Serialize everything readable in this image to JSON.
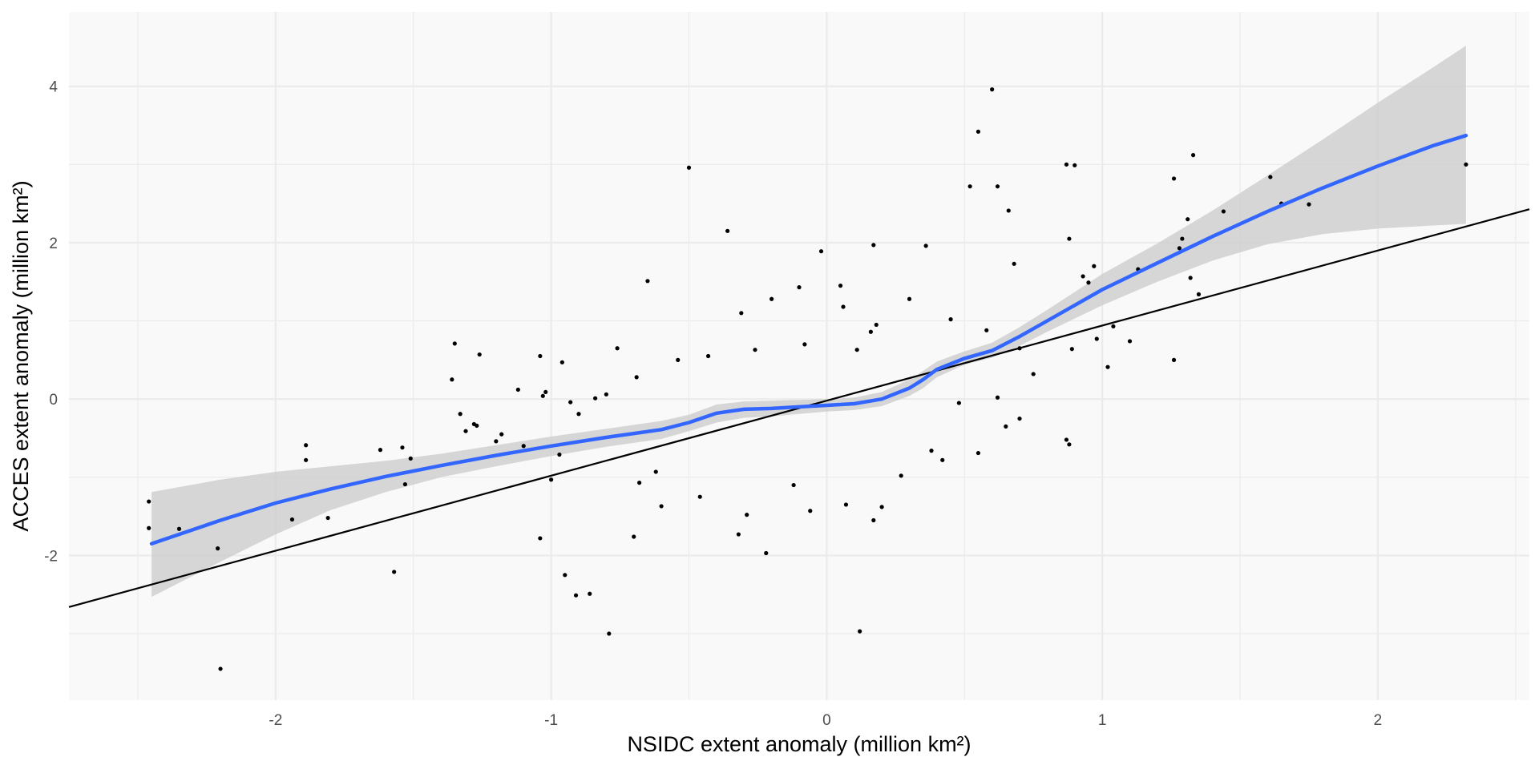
{
  "chart_data": {
    "type": "scatter",
    "xlabel": "NSIDC extent anomaly (million km²)",
    "ylabel": "ACCES extent anomaly (million km²)",
    "xlim": [
      -2.75,
      2.55
    ],
    "ylim": [
      -3.85,
      4.95
    ],
    "x_ticks": [
      -2,
      -1,
      0,
      1,
      2
    ],
    "x_tick_labels": [
      "-2",
      "-1",
      "0",
      "1",
      "2"
    ],
    "y_ticks": [
      -2,
      0,
      2,
      4
    ],
    "y_tick_labels": [
      "-2",
      "0",
      "2",
      "4"
    ],
    "grid": true,
    "legend": "none",
    "colors": {
      "panel_background": "#f9f9f9",
      "grid": "#ebebeb",
      "points": "#000000",
      "smooth_line": "#3366ff",
      "confidence_band": "#cccccc",
      "reference_line": "#000000"
    },
    "reference_line": {
      "slope": 0.96,
      "intercept": -0.02
    },
    "smooth_line": {
      "x": [
        -2.45,
        -2.2,
        -2.0,
        -1.8,
        -1.6,
        -1.4,
        -1.2,
        -1.0,
        -0.8,
        -0.6,
        -0.5,
        -0.4,
        -0.3,
        -0.2,
        -0.1,
        0.0,
        0.1,
        0.2,
        0.3,
        0.35,
        0.4,
        0.5,
        0.6,
        0.7,
        0.8,
        0.9,
        1.0,
        1.2,
        1.4,
        1.6,
        1.8,
        2.0,
        2.2,
        2.32
      ],
      "y": [
        -1.85,
        -1.55,
        -1.33,
        -1.15,
        -0.99,
        -0.85,
        -0.72,
        -0.6,
        -0.49,
        -0.39,
        -0.3,
        -0.18,
        -0.13,
        -0.12,
        -0.1,
        -0.08,
        -0.06,
        0.0,
        0.14,
        0.25,
        0.38,
        0.52,
        0.62,
        0.8,
        1.0,
        1.2,
        1.4,
        1.74,
        2.08,
        2.4,
        2.7,
        2.98,
        3.24,
        3.37
      ]
    },
    "confidence_band": {
      "x": [
        -2.45,
        -2.2,
        -2.0,
        -1.8,
        -1.6,
        -1.4,
        -1.2,
        -1.0,
        -0.8,
        -0.6,
        -0.5,
        -0.4,
        -0.3,
        -0.2,
        -0.1,
        0.0,
        0.1,
        0.2,
        0.3,
        0.35,
        0.4,
        0.5,
        0.6,
        0.7,
        0.8,
        0.9,
        1.0,
        1.2,
        1.4,
        1.6,
        1.8,
        2.0,
        2.2,
        2.32
      ],
      "lower": [
        -2.53,
        -2.08,
        -1.73,
        -1.42,
        -1.19,
        -1.0,
        -0.86,
        -0.73,
        -0.61,
        -0.51,
        -0.41,
        -0.3,
        -0.24,
        -0.22,
        -0.19,
        -0.16,
        -0.14,
        -0.09,
        0.04,
        0.14,
        0.28,
        0.44,
        0.53,
        0.68,
        0.86,
        1.03,
        1.2,
        1.5,
        1.77,
        1.98,
        2.11,
        2.18,
        2.22,
        2.24
      ],
      "upper": [
        -1.19,
        -1.03,
        -0.93,
        -0.86,
        -0.79,
        -0.7,
        -0.59,
        -0.48,
        -0.38,
        -0.28,
        -0.2,
        -0.07,
        -0.03,
        -0.02,
        -0.01,
        0.0,
        0.02,
        0.09,
        0.25,
        0.36,
        0.48,
        0.61,
        0.72,
        0.92,
        1.14,
        1.37,
        1.6,
        1.99,
        2.41,
        2.86,
        3.32,
        3.79,
        4.24,
        4.52
      ]
    },
    "points": [
      [
        -2.46,
        -1.31
      ],
      [
        -2.46,
        -1.65
      ],
      [
        -2.35,
        -1.66
      ],
      [
        -2.21,
        -1.91
      ],
      [
        -2.2,
        -3.45
      ],
      [
        -1.94,
        -1.54
      ],
      [
        -1.89,
        -0.59
      ],
      [
        -1.89,
        -0.78
      ],
      [
        -1.81,
        -1.52
      ],
      [
        -1.62,
        -0.65
      ],
      [
        -1.57,
        -2.21
      ],
      [
        -1.54,
        -0.62
      ],
      [
        -1.53,
        -1.09
      ],
      [
        -1.51,
        -0.76
      ],
      [
        -1.36,
        0.25
      ],
      [
        -1.35,
        0.71
      ],
      [
        -1.33,
        -0.19
      ],
      [
        -1.31,
        -0.41
      ],
      [
        -1.28,
        -0.32
      ],
      [
        -1.27,
        -0.34
      ],
      [
        -1.26,
        0.57
      ],
      [
        -1.2,
        -0.54
      ],
      [
        -1.18,
        -0.45
      ],
      [
        -1.12,
        0.12
      ],
      [
        -1.1,
        -0.6
      ],
      [
        -1.04,
        0.55
      ],
      [
        -1.04,
        -1.78
      ],
      [
        -1.03,
        0.04
      ],
      [
        -1.02,
        0.09
      ],
      [
        -1.0,
        -1.03
      ],
      [
        -0.97,
        -0.71
      ],
      [
        -0.96,
        0.47
      ],
      [
        -0.95,
        -2.25
      ],
      [
        -0.93,
        -0.04
      ],
      [
        -0.91,
        -2.51
      ],
      [
        -0.9,
        -0.19
      ],
      [
        -0.86,
        -2.49
      ],
      [
        -0.84,
        0.01
      ],
      [
        -0.8,
        0.06
      ],
      [
        -0.79,
        -3.0
      ],
      [
        -0.76,
        0.65
      ],
      [
        -0.7,
        -1.76
      ],
      [
        -0.69,
        0.28
      ],
      [
        -0.65,
        1.51
      ],
      [
        -0.5,
        2.96
      ],
      [
        -0.36,
        2.15
      ],
      [
        -0.22,
        -1.97
      ],
      [
        -0.02,
        1.89
      ],
      [
        0.06,
        1.18
      ],
      [
        0.12,
        -2.97
      ],
      [
        0.17,
        1.97
      ],
      [
        0.36,
        1.96
      ],
      [
        0.52,
        2.72
      ],
      [
        0.55,
        3.42
      ],
      [
        0.6,
        3.96
      ],
      [
        0.62,
        2.72
      ],
      [
        0.66,
        2.41
      ],
      [
        0.68,
        1.73
      ],
      [
        0.87,
        3.0
      ],
      [
        0.9,
        2.99
      ],
      [
        0.88,
        2.05
      ],
      [
        0.87,
        -0.52
      ],
      [
        0.88,
        -0.58
      ],
      [
        0.89,
        0.64
      ],
      [
        0.93,
        1.57
      ],
      [
        0.95,
        1.49
      ],
      [
        0.97,
        1.7
      ],
      [
        0.98,
        0.77
      ],
      [
        1.02,
        0.41
      ],
      [
        1.04,
        0.93
      ],
      [
        1.1,
        0.74
      ],
      [
        1.13,
        1.66
      ],
      [
        1.26,
        0.5
      ],
      [
        1.26,
        2.82
      ],
      [
        1.28,
        1.93
      ],
      [
        1.29,
        2.05
      ],
      [
        1.31,
        2.3
      ],
      [
        1.32,
        1.55
      ],
      [
        1.33,
        3.12
      ],
      [
        1.35,
        1.34
      ],
      [
        1.44,
        2.4
      ],
      [
        1.61,
        2.84
      ],
      [
        1.65,
        2.5
      ],
      [
        1.75,
        2.49
      ],
      [
        2.32,
        3.0
      ],
      [
        0.3,
        1.28
      ],
      [
        0.18,
        0.95
      ],
      [
        0.45,
        1.02
      ],
      [
        0.58,
        0.88
      ],
      [
        0.7,
        0.65
      ],
      [
        0.75,
        0.32
      ],
      [
        0.62,
        0.02
      ],
      [
        0.65,
        -0.35
      ],
      [
        0.7,
        -0.25
      ],
      [
        0.48,
        -0.05
      ],
      [
        0.42,
        -0.78
      ],
      [
        0.55,
        -0.69
      ],
      [
        0.38,
        -0.66
      ],
      [
        0.27,
        -0.98
      ],
      [
        0.2,
        -1.38
      ],
      [
        0.17,
        -1.55
      ],
      [
        0.07,
        -1.35
      ],
      [
        -0.06,
        -1.43
      ],
      [
        -0.12,
        -1.1
      ],
      [
        -0.29,
        -1.48
      ],
      [
        -0.32,
        -1.73
      ],
      [
        -0.46,
        -1.25
      ],
      [
        -0.6,
        -1.37
      ],
      [
        -0.68,
        -1.07
      ],
      [
        -0.62,
        -0.93
      ],
      [
        -0.54,
        0.5
      ],
      [
        -0.43,
        0.55
      ],
      [
        -0.31,
        1.1
      ],
      [
        -0.2,
        1.28
      ],
      [
        -0.1,
        1.43
      ],
      [
        0.05,
        1.45
      ],
      [
        0.11,
        0.63
      ],
      [
        0.16,
        0.86
      ],
      [
        -0.08,
        0.7
      ],
      [
        -0.26,
        0.63
      ]
    ]
  }
}
